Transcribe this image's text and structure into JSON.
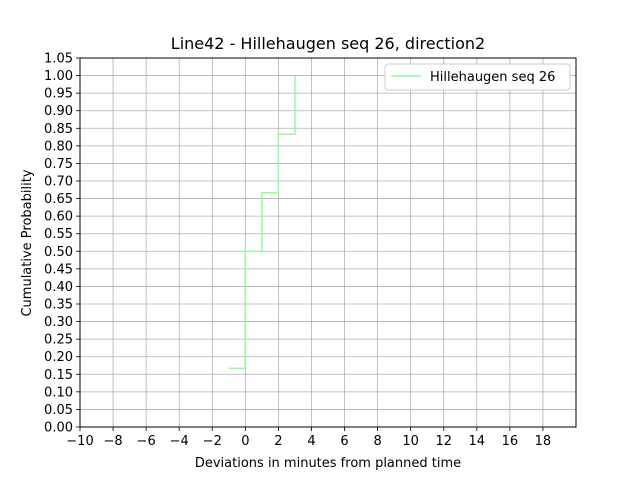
{
  "chart_data": {
    "type": "line",
    "step": "post",
    "title": "Line42 - Hillehaugen seq 26, direction2",
    "xlabel": "Deviations in minutes from planned time",
    "ylabel": "Cumulative Probability",
    "xlim": [
      -10,
      20
    ],
    "ylim": [
      0,
      1.05
    ],
    "xticks": [
      -10,
      -8,
      -6,
      -4,
      -2,
      0,
      2,
      4,
      6,
      8,
      10,
      12,
      14,
      16,
      18
    ],
    "xtick_labels": [
      "−10",
      "−8",
      "−6",
      "−4",
      "−2",
      "0",
      "2",
      "4",
      "6",
      "8",
      "10",
      "12",
      "14",
      "16",
      "18"
    ],
    "yticks": [
      0,
      0.05,
      0.1,
      0.15,
      0.2,
      0.25,
      0.3,
      0.35,
      0.4,
      0.45,
      0.5,
      0.55,
      0.6,
      0.65,
      0.7,
      0.75,
      0.8,
      0.85,
      0.9,
      0.95,
      1.0,
      1.05
    ],
    "ytick_labels": [
      "0.00",
      "0.05",
      "0.10",
      "0.15",
      "0.20",
      "0.25",
      "0.30",
      "0.35",
      "0.40",
      "0.45",
      "0.50",
      "0.55",
      "0.60",
      "0.65",
      "0.70",
      "0.75",
      "0.80",
      "0.85",
      "0.90",
      "0.95",
      "1.00",
      "1.05"
    ],
    "grid": true,
    "legend_position": "top-right",
    "series": [
      {
        "name": "Hillehaugen seq 26",
        "color": "#98fb98",
        "x": [
          -1,
          0,
          1,
          2,
          3,
          3
        ],
        "y": [
          0.1667,
          0.5,
          0.6667,
          0.8333,
          1.0,
          1.0
        ]
      }
    ]
  }
}
